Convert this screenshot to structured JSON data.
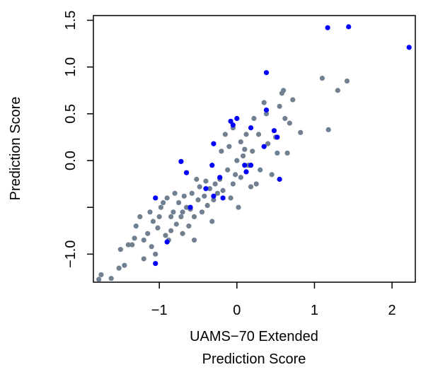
{
  "chart_data": {
    "type": "scatter",
    "title": "",
    "xlabel_lines": [
      "UAMS−70 Extended",
      "Prediction Score"
    ],
    "ylabel": "Prediction Score",
    "xlim": [
      -1.85,
      2.3
    ],
    "ylim": [
      -1.3,
      1.55
    ],
    "xticks": [
      -1,
      0,
      1,
      2
    ],
    "xtick_labels": [
      "−1",
      "0",
      "1",
      "2"
    ],
    "yticks": [
      -1.0,
      -0.5,
      0.0,
      0.5,
      1.0,
      1.5
    ],
    "ytick_labels": [
      "−1.0",
      "",
      "0.0",
      "0.5",
      "1.0",
      "1.5"
    ],
    "grid": false,
    "colors": {
      "gray": "#708090",
      "blue": "#0000ff"
    },
    "series": [
      {
        "color": "gray",
        "points": [
          [
            -1.78,
            -1.27
          ],
          [
            -1.75,
            -1.22
          ],
          [
            -1.62,
            -1.26
          ],
          [
            -1.52,
            -1.15
          ],
          [
            -1.5,
            -0.95
          ],
          [
            -1.45,
            -1.12
          ],
          [
            -1.4,
            -0.9
          ],
          [
            -1.35,
            -0.9
          ],
          [
            -1.32,
            -0.83
          ],
          [
            -1.3,
            -0.7
          ],
          [
            -1.25,
            -0.6
          ],
          [
            -1.2,
            -1.05
          ],
          [
            -1.2,
            -0.85
          ],
          [
            -1.15,
            -0.78
          ],
          [
            -1.12,
            -0.55
          ],
          [
            -1.1,
            -0.92
          ],
          [
            -1.08,
            -0.65
          ],
          [
            -1.05,
            -1.0
          ],
          [
            -1.02,
            -0.72
          ],
          [
            -1.0,
            -0.6
          ],
          [
            -0.98,
            -0.5
          ],
          [
            -0.95,
            -0.45
          ],
          [
            -0.92,
            -0.8
          ],
          [
            -0.9,
            -0.4
          ],
          [
            -0.88,
            -0.85
          ],
          [
            -0.85,
            -0.75
          ],
          [
            -0.85,
            -0.6
          ],
          [
            -0.82,
            -0.55
          ],
          [
            -0.8,
            -0.35
          ],
          [
            -0.78,
            -0.68
          ],
          [
            -0.75,
            -0.45
          ],
          [
            -0.72,
            -0.6
          ],
          [
            -0.7,
            -0.78
          ],
          [
            -0.7,
            -0.55
          ],
          [
            -0.68,
            -0.38
          ],
          [
            -0.65,
            -0.5
          ],
          [
            -0.62,
            -0.7
          ],
          [
            -0.6,
            -0.52
          ],
          [
            -0.58,
            -0.35
          ],
          [
            -0.55,
            -0.85
          ],
          [
            -0.55,
            -0.6
          ],
          [
            -0.52,
            -0.2
          ],
          [
            -0.5,
            -0.42
          ],
          [
            -0.48,
            -0.28
          ],
          [
            -0.45,
            -0.55
          ],
          [
            -0.42,
            -0.38
          ],
          [
            -0.4,
            -0.22
          ],
          [
            -0.38,
            -0.48
          ],
          [
            -0.35,
            -0.3
          ],
          [
            -0.32,
            -0.65
          ],
          [
            -0.3,
            -0.42
          ],
          [
            -0.28,
            -0.25
          ],
          [
            -0.25,
            -0.35
          ],
          [
            -0.22,
            -0.2
          ],
          [
            -0.2,
            0.1
          ],
          [
            -0.18,
            -0.32
          ],
          [
            -0.15,
            0.28
          ],
          [
            -0.12,
            -0.1
          ],
          [
            -0.1,
            0.15
          ],
          [
            -0.08,
            -0.4
          ],
          [
            -0.05,
            0.35
          ],
          [
            -0.05,
            -0.25
          ],
          [
            -0.02,
            -0.15
          ],
          [
            0.0,
            0.0
          ],
          [
            0.02,
            -0.5
          ],
          [
            0.05,
            0.2
          ],
          [
            0.05,
            -0.18
          ],
          [
            0.08,
            0.05
          ],
          [
            0.1,
            0.12
          ],
          [
            0.12,
            0.28
          ],
          [
            0.15,
            -0.05
          ],
          [
            0.18,
            -0.28
          ],
          [
            0.2,
            0.1
          ],
          [
            0.22,
            0.45
          ],
          [
            0.25,
            -0.25
          ],
          [
            0.28,
            0.28
          ],
          [
            0.3,
            -0.1
          ],
          [
            0.35,
            0.62
          ],
          [
            0.38,
            0.5
          ],
          [
            0.4,
            0.18
          ],
          [
            0.45,
            -0.15
          ],
          [
            0.5,
            0.25
          ],
          [
            0.52,
            0.08
          ],
          [
            0.55,
            0.58
          ],
          [
            0.58,
            0.72
          ],
          [
            0.6,
            0.75
          ],
          [
            0.62,
            0.45
          ],
          [
            0.65,
            0.08
          ],
          [
            0.68,
            0.4
          ],
          [
            0.72,
            0.65
          ],
          [
            0.82,
            0.3
          ],
          [
            1.1,
            0.88
          ],
          [
            1.18,
            0.33
          ],
          [
            1.3,
            0.75
          ],
          [
            1.42,
            0.85
          ]
        ]
      },
      {
        "color": "blue",
        "points": [
          [
            -1.05,
            -1.1
          ],
          [
            -1.05,
            -0.4
          ],
          [
            -0.9,
            -0.87
          ],
          [
            -0.72,
            -0.01
          ],
          [
            -0.65,
            -0.13
          ],
          [
            -0.6,
            -0.5
          ],
          [
            -0.4,
            -0.3
          ],
          [
            -0.32,
            -0.05
          ],
          [
            -0.3,
            -0.38
          ],
          [
            -0.3,
            0.18
          ],
          [
            -0.22,
            -0.18
          ],
          [
            -0.18,
            -0.4
          ],
          [
            -0.08,
            0.42
          ],
          [
            -0.05,
            0.38
          ],
          [
            0.0,
            0.45
          ],
          [
            0.1,
            -0.05
          ],
          [
            0.12,
            -0.12
          ],
          [
            0.18,
            -0.05
          ],
          [
            0.18,
            0.35
          ],
          [
            0.35,
            0.15
          ],
          [
            0.38,
            0.94
          ],
          [
            0.38,
            0.54
          ],
          [
            0.48,
            0.32
          ],
          [
            0.52,
            0.25
          ],
          [
            0.55,
            -0.2
          ],
          [
            1.17,
            1.42
          ],
          [
            1.44,
            1.43
          ],
          [
            2.22,
            1.21
          ]
        ]
      }
    ]
  }
}
